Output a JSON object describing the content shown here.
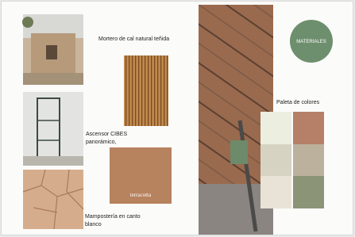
{
  "header": {
    "title": "MATERIALES"
  },
  "materials": [
    {
      "label": "Mortero de cal natural teñida"
    },
    {
      "label": "Ascensor CIBES panorámico,"
    },
    {
      "label": "terracotta"
    },
    {
      "label": "Mampostería en canto blanco"
    }
  ],
  "palette": {
    "title": "Paleta de colores"
  }
}
